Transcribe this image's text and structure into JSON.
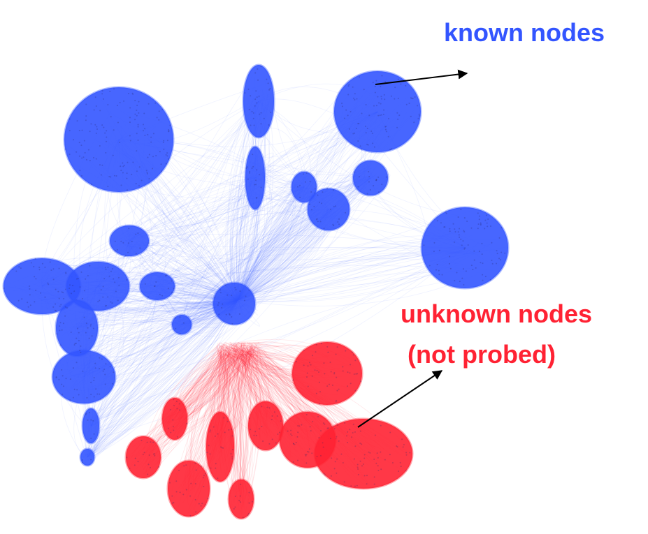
{
  "labels": {
    "known": "known nodes",
    "unknown_line1": "unknown nodes",
    "unknown_line2": "(not probed)"
  },
  "colors": {
    "known": "#3355ff",
    "unknown": "#ff2233",
    "arrow": "#000000"
  }
}
